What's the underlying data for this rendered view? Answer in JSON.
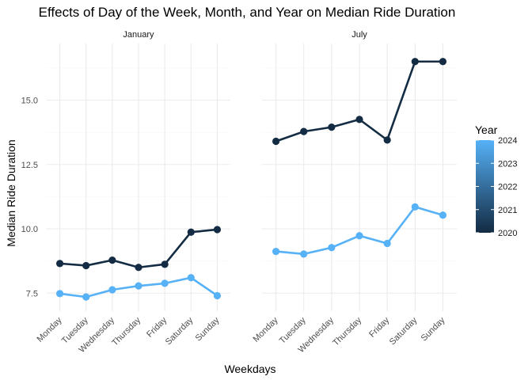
{
  "chart_data": {
    "type": "line",
    "title": "Effects of Day of the Week, Month, and Year on Median Ride Duration",
    "xlabel": "Weekdays",
    "ylabel": "Median Ride Duration",
    "categories": [
      "Monday",
      "Tuesday",
      "Wednesday",
      "Thursday",
      "Friday",
      "Saturday",
      "Sunday"
    ],
    "yticks": [
      "7.5",
      "10.0",
      "12.5",
      "15.0"
    ],
    "ytick_values": [
      7.5,
      10.0,
      12.5,
      15.0
    ],
    "ylim": [
      6.8,
      17.2
    ],
    "grid": true,
    "legend": {
      "title": "Year",
      "placement": "right",
      "labels": [
        "2020",
        "2021",
        "2022",
        "2023",
        "2024"
      ],
      "range": [
        2020,
        2024
      ],
      "color_low": "#132B43",
      "color_high": "#56B1F7"
    },
    "facets": [
      {
        "label": "January",
        "series": [
          {
            "year": 2020,
            "color": "#132B43",
            "values": [
              8.65,
              8.57,
              8.78,
              8.5,
              8.62,
              9.87,
              9.97
            ]
          },
          {
            "year": 2024,
            "color": "#56B1F7",
            "values": [
              7.48,
              7.35,
              7.63,
              7.78,
              7.88,
              8.1,
              7.4
            ]
          }
        ]
      },
      {
        "label": "July",
        "series": [
          {
            "year": 2020,
            "color": "#132B43",
            "values": [
              13.4,
              13.78,
              13.95,
              14.25,
              13.45,
              16.5,
              16.5
            ]
          },
          {
            "year": 2024,
            "color": "#56B1F7",
            "values": [
              9.12,
              9.02,
              9.27,
              9.73,
              9.43,
              10.85,
              10.53
            ]
          }
        ]
      }
    ]
  }
}
